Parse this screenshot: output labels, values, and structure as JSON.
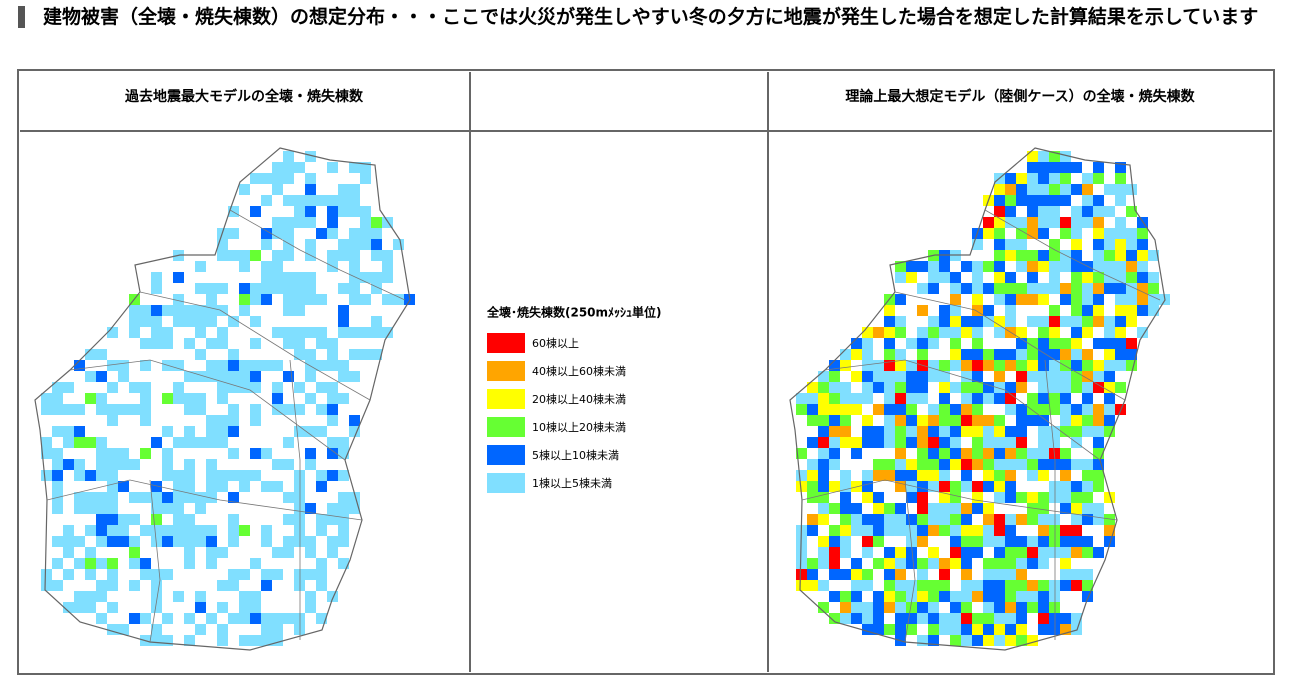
{
  "header": {
    "title": "建物被害（全壊・焼失棟数）の想定分布・・・ここでは火災が発生しやすい冬の夕方に地震が発生した場合を想定した計算結果を示しています"
  },
  "table": {
    "headers": {
      "left": "過去地震最大モデルの全壊・焼失棟数",
      "right": "理論上最大想定モデル（陸側ケース）の全壊・焼失棟数"
    }
  },
  "legend": {
    "title": "全壊･焼失棟数(250mﾒｯｼｭ単位)",
    "items": [
      {
        "label": "60棟以上",
        "color": "#ff0000"
      },
      {
        "label": "40棟以上60棟未満",
        "color": "#ffa500"
      },
      {
        "label": "20棟以上40棟未満",
        "color": "#ffff00"
      },
      {
        "label": "10棟以上20棟未満",
        "color": "#66ff33"
      },
      {
        "label": "5棟以上10棟未満",
        "color": "#0066ff"
      },
      {
        "label": "1棟以上5棟未満",
        "color": "#80dfff"
      }
    ]
  }
}
